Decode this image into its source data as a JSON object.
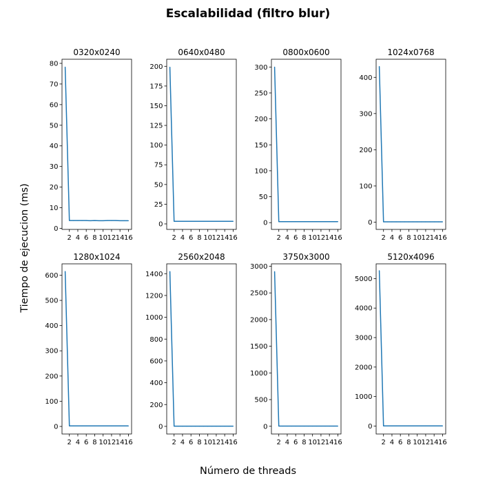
{
  "figure": {
    "suptitle": "Escalabilidad (filtro blur)",
    "xlabel": "Número de threads",
    "ylabel": "Tiempo de ejecucion (ms)",
    "line_color": "#1f77b4"
  },
  "chart_data": [
    {
      "type": "line",
      "title": "0320x0240",
      "x": [
        1,
        2,
        3,
        4,
        5,
        6,
        7,
        8,
        9,
        10,
        11,
        12,
        13,
        14,
        15,
        16
      ],
      "values": [
        78.2,
        3.8,
        3.8,
        3.8,
        3.8,
        3.8,
        3.7,
        3.8,
        3.7,
        3.7,
        3.8,
        3.8,
        3.8,
        3.7,
        3.7,
        3.7
      ],
      "ylim": [
        -0.5,
        82
      ],
      "yticks": [
        0,
        10,
        20,
        30,
        40,
        50,
        60,
        70,
        80
      ],
      "xticks": [
        2,
        4,
        6,
        8,
        10,
        12,
        14,
        16
      ]
    },
    {
      "type": "line",
      "title": "0640x0480",
      "x": [
        1,
        2,
        3,
        4,
        5,
        6,
        7,
        8,
        9,
        10,
        11,
        12,
        13,
        14,
        15,
        16
      ],
      "values": [
        199,
        3.3,
        3.3,
        3.3,
        3.3,
        3.3,
        3.3,
        3.3,
        3.3,
        3.3,
        3.3,
        3.3,
        3.3,
        3.3,
        3.3,
        3.3
      ],
      "ylim": [
        -7,
        209
      ],
      "yticks": [
        0,
        25,
        50,
        75,
        100,
        125,
        150,
        175,
        200
      ],
      "xticks": [
        2,
        4,
        6,
        8,
        10,
        12,
        14,
        16
      ]
    },
    {
      "type": "line",
      "title": "0800x0600",
      "x": [
        1,
        2,
        3,
        4,
        5,
        6,
        7,
        8,
        9,
        10,
        11,
        12,
        13,
        14,
        15,
        16
      ],
      "values": [
        300,
        2,
        2,
        2,
        2,
        2,
        2,
        2,
        2,
        2,
        2,
        2,
        2,
        2,
        2,
        2
      ],
      "ylim": [
        -13,
        315
      ],
      "yticks": [
        0,
        50,
        100,
        150,
        200,
        250,
        300
      ],
      "xticks": [
        2,
        4,
        6,
        8,
        10,
        12,
        14,
        16
      ]
    },
    {
      "type": "line",
      "title": "1024x0768",
      "x": [
        1,
        2,
        3,
        4,
        5,
        6,
        7,
        8,
        9,
        10,
        11,
        12,
        13,
        14,
        15,
        16
      ],
      "values": [
        430,
        1,
        1,
        1,
        1,
        1,
        1,
        1,
        1,
        1,
        1,
        1,
        1,
        1,
        1,
        1
      ],
      "ylim": [
        -20,
        450
      ],
      "yticks": [
        0,
        100,
        200,
        300,
        400
      ],
      "xticks": [
        2,
        4,
        6,
        8,
        10,
        12,
        14,
        16
      ]
    },
    {
      "type": "line",
      "title": "1280x1024",
      "x": [
        1,
        2,
        3,
        4,
        5,
        6,
        7,
        8,
        9,
        10,
        11,
        12,
        13,
        14,
        15,
        16
      ],
      "values": [
        615,
        2,
        2,
        2,
        2,
        2,
        2,
        2,
        2,
        2,
        2,
        2,
        2,
        2,
        2,
        2
      ],
      "ylim": [
        -30,
        645
      ],
      "yticks": [
        0,
        100,
        200,
        300,
        400,
        500,
        600
      ],
      "xticks": [
        2,
        4,
        6,
        8,
        10,
        12,
        14,
        16
      ]
    },
    {
      "type": "line",
      "title": "2560x2048",
      "x": [
        1,
        2,
        3,
        4,
        5,
        6,
        7,
        8,
        9,
        10,
        11,
        12,
        13,
        14,
        15,
        16
      ],
      "values": [
        1420,
        2,
        2,
        2,
        2,
        2,
        2,
        2,
        2,
        2,
        2,
        2,
        2,
        2,
        2,
        2
      ],
      "ylim": [
        -70,
        1490
      ],
      "yticks": [
        0,
        200,
        400,
        600,
        800,
        1000,
        1200,
        1400
      ],
      "xticks": [
        2,
        4,
        6,
        8,
        10,
        12,
        14,
        16
      ]
    },
    {
      "type": "line",
      "title": "3750x3000",
      "x": [
        1,
        2,
        3,
        4,
        5,
        6,
        7,
        8,
        9,
        10,
        11,
        12,
        13,
        14,
        15,
        16
      ],
      "values": [
        2900,
        3,
        3,
        3,
        3,
        3,
        3,
        3,
        3,
        3,
        3,
        3,
        3,
        3,
        3,
        3
      ],
      "ylim": [
        -145,
        3045
      ],
      "yticks": [
        0,
        500,
        1000,
        1500,
        2000,
        2500,
        3000
      ],
      "xticks": [
        2,
        4,
        6,
        8,
        10,
        12,
        14,
        16
      ]
    },
    {
      "type": "line",
      "title": "5120x4096",
      "x": [
        1,
        2,
        3,
        4,
        5,
        6,
        7,
        8,
        9,
        10,
        11,
        12,
        13,
        14,
        15,
        16
      ],
      "values": [
        5270,
        5,
        5,
        5,
        5,
        5,
        5,
        5,
        5,
        5,
        5,
        5,
        5,
        5,
        5,
        5
      ],
      "ylim": [
        -270,
        5500
      ],
      "yticks": [
        0,
        1000,
        2000,
        3000,
        4000,
        5000
      ],
      "xticks": [
        2,
        4,
        6,
        8,
        10,
        12,
        14,
        16
      ]
    }
  ]
}
